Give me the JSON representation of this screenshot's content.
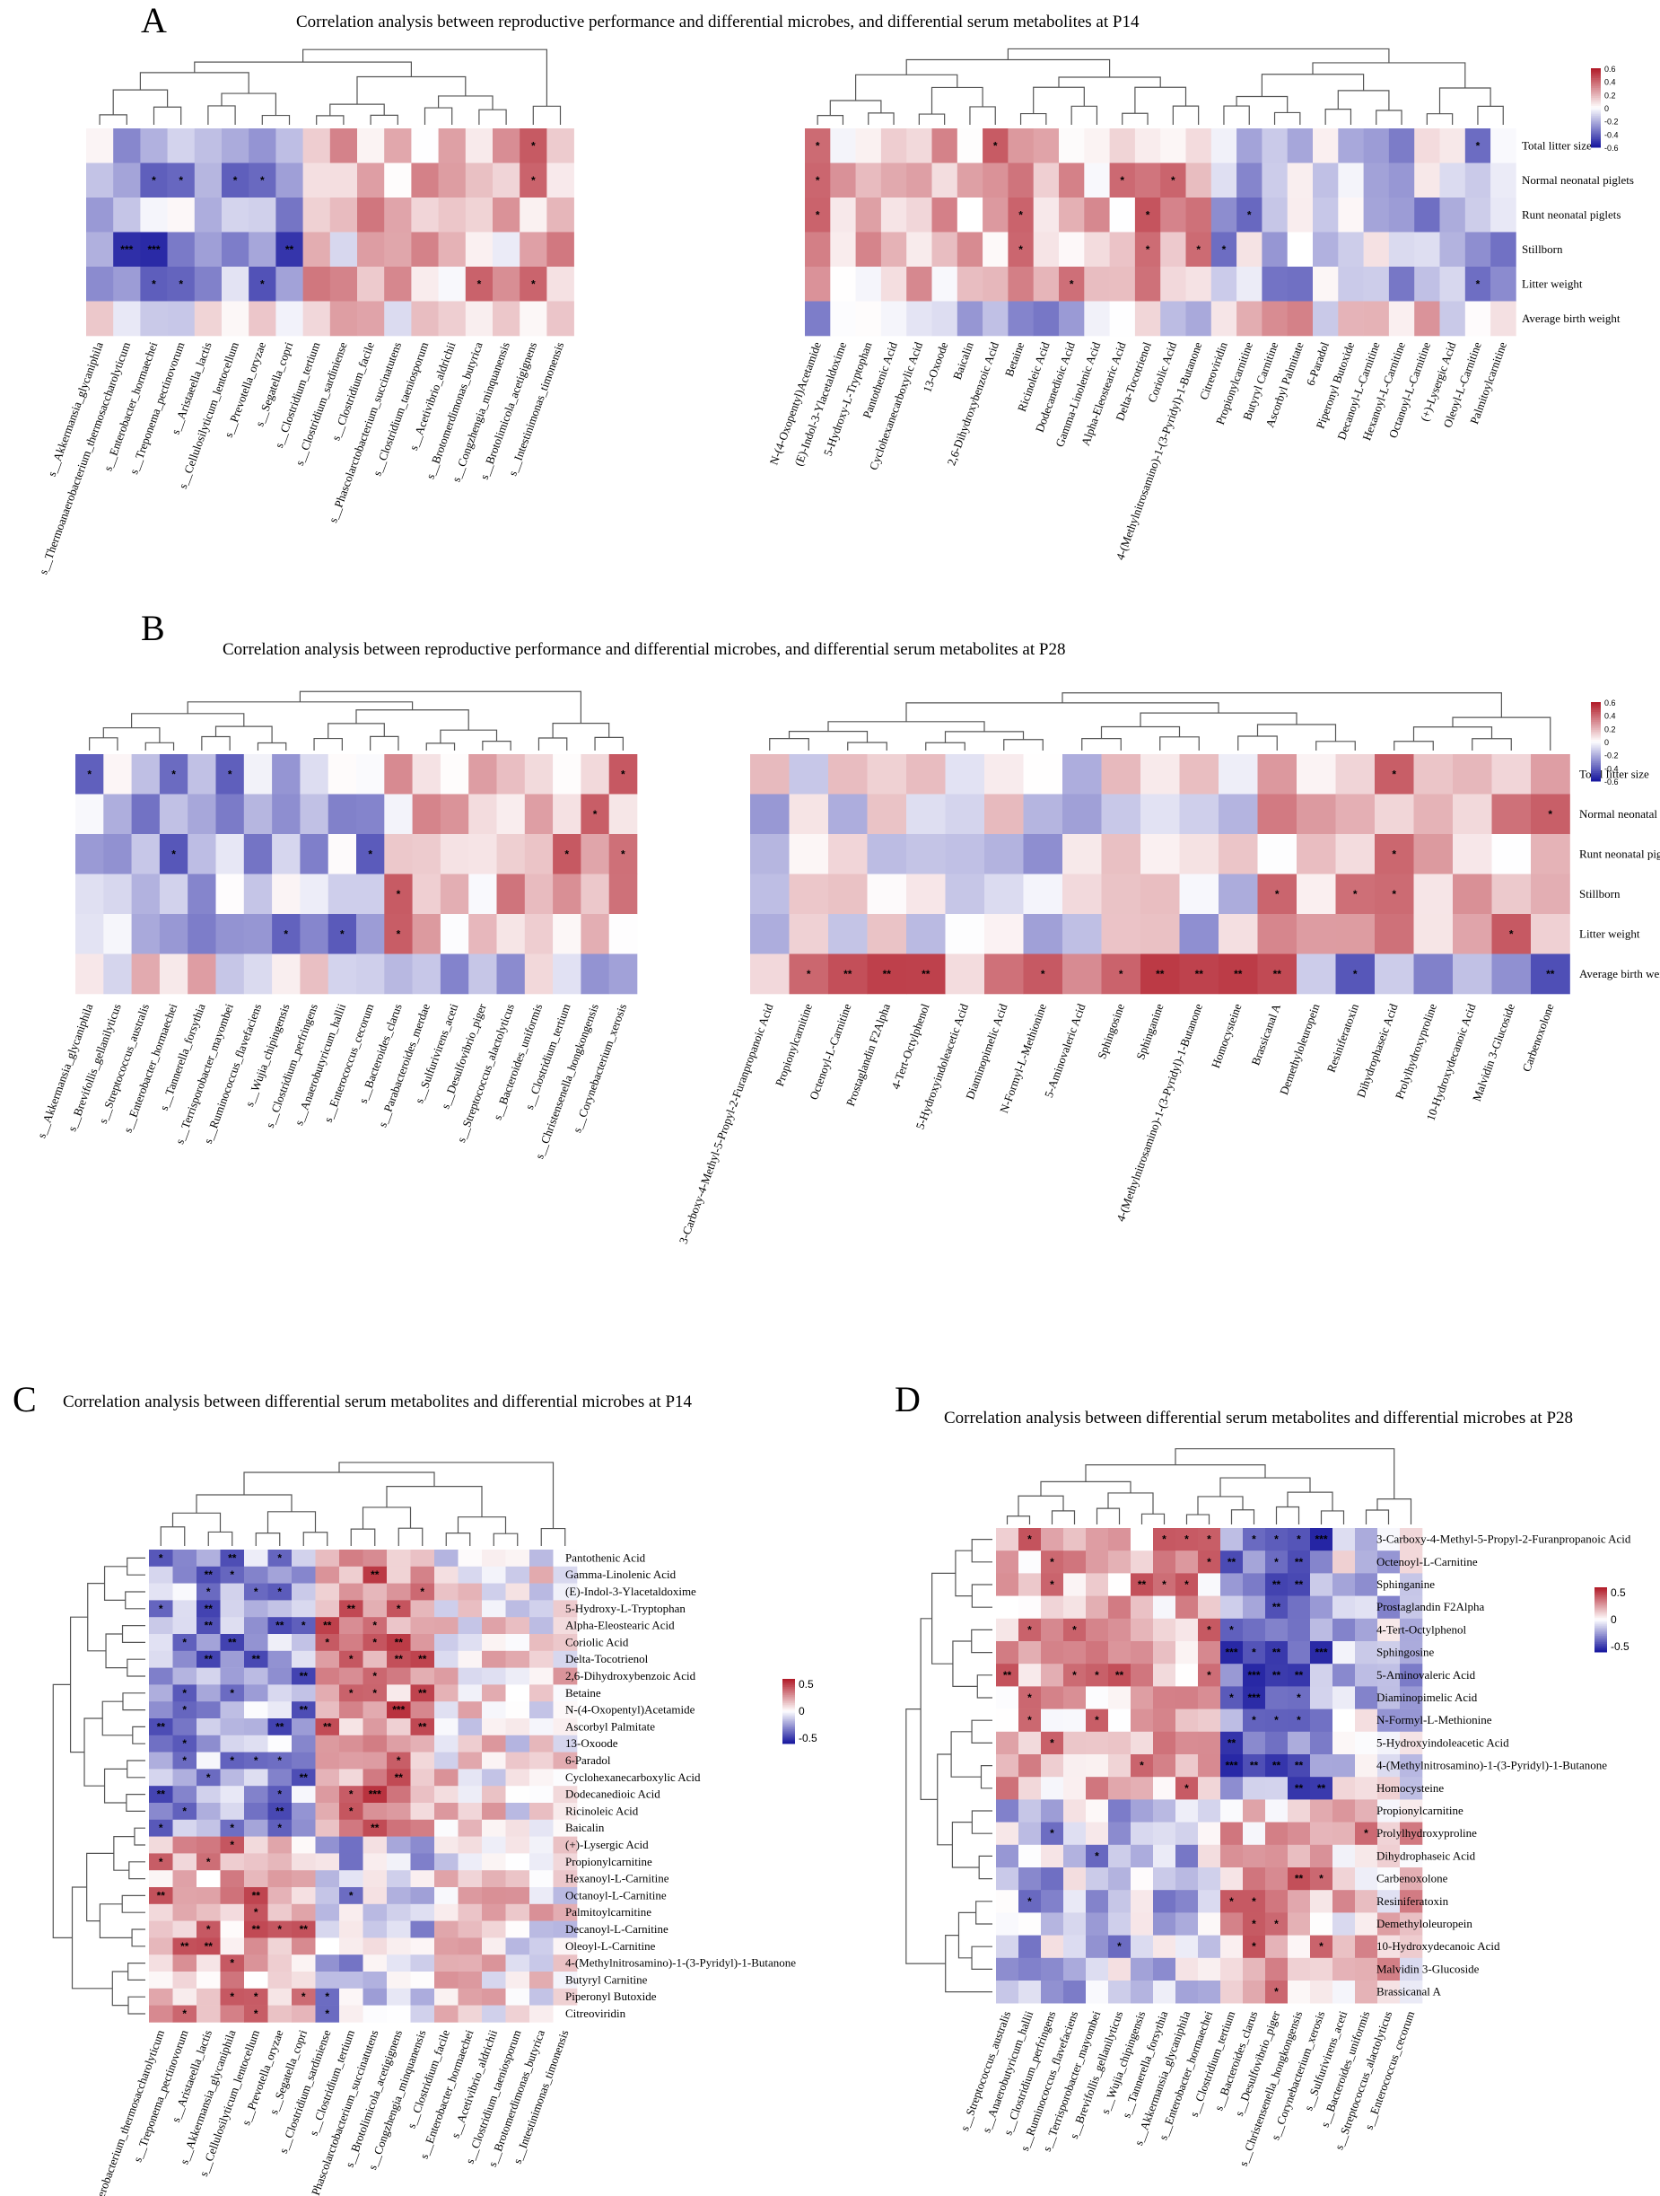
{
  "colors": {
    "neg": "#1b1ba0",
    "mid": "#ffffff",
    "pos": "#b21e2b",
    "tree": "#555555"
  },
  "chart_data": [
    {
      "type": "heatmap",
      "panel": "A",
      "title": "Correlation analysis between reproductive performance and differential microbes, and differential serum metabolites at P14",
      "rows": [
        "Total litter size",
        "Normal neonatal piglets",
        "Runt neonatal piglets",
        "Stillborn",
        "Litter weight",
        "Average birth weight"
      ],
      "cols_left": [
        "s__Akkermansia_glycaniphila",
        "s__Thermoanaerobacterium_thermosaccharolyticum",
        "s__Enterobacter_hormaechei",
        "s__Treponema_pectinovorum",
        "s__Aristaeella_lactis",
        "s__Cellulosilyticum_lentocellum",
        "s__Prevotella_oryzae",
        "s__Segatella_copri",
        "s__Clostridium_tertium",
        "s__Clostridium_sardiniense",
        "s__Clostridium_facile",
        "s__Phascolarctobacterium_succinatutens",
        "s__Clostridium_taeniosporum",
        "s__Acetivibrio_aldrichii",
        "s__Brotomerdimonas_butyrica",
        "s__Congzhengia_minquanensis",
        "s__Brotolimicola_acetigignens",
        "s__Intestinimonas_timonensis"
      ],
      "cols_right": [
        "N-(4-Oxopentyl)Acetamide",
        "(E)-Indol-3-Ylacetaldoxime",
        "5-Hydroxy-L-Tryptophan",
        "Pantothenic Acid",
        "Cyclohexanecarboxylic Acid",
        "13-Oxoode",
        "Baicalin",
        "2,6-Dihydroxybenzoic Acid",
        "Betaine",
        "Ricinoleic Acid",
        "Dodecanedioic Acid",
        "Gamma-Linolenic Acid",
        "Alpha-Eleostearic Acid",
        "Delta-Tocotrienol",
        "Coriolic Acid",
        "4-(Methylnitrosamino)-1-(3-Pyridyl)-1-Butanone",
        "Citreoviridin",
        "Propionylcarnitine",
        "Butyryl Carnitine",
        "Ascorbyl Palmitate",
        "6-Paradol",
        "Piperonyl Butoxide",
        "Decanoyl-L-Carnitine",
        "Hexanoyl-L-Carnitine",
        "Octanoyl-L-Carnitine",
        "(+)-Lysergic Acid",
        "Oleoyl-L-Carnitine",
        "Palmitoylcarnitine"
      ],
      "value_range": [
        -0.6,
        0.6
      ],
      "legend_ticks": [
        "0.6",
        "0.4",
        "0.2",
        "0",
        "-0.2",
        "-0.4",
        "-0.6"
      ]
    },
    {
      "type": "heatmap",
      "panel": "B",
      "title": "Correlation analysis between reproductive performance and differential microbes, and differential serum metabolites at P28",
      "rows": [
        "Total litter size",
        "Normal neonatal piglets",
        "Runt neonatal piglets",
        "Stillborn",
        "Litter weight",
        "Average birth weight"
      ],
      "cols_left": [
        "s__Akkermansia_glycaniphila",
        "s__Brevifollis_gellanilyticus",
        "s__Streptococcus_australis",
        "s__Enterobacter_hormaechei",
        "s__Tannerella_forsythia",
        "s__Terrisporobacter_mayombei",
        "s__Ruminococcus_flavefaciens",
        "s__Wujia_chipingensis",
        "s__Clostridium_perfringens",
        "s__Anaerobutyricum_hallii",
        "s__Enterococcus_cecorum",
        "s__Bacteroides_clarus",
        "s__Parabacteroides_merdae",
        "s__Sulfurivirens_aceti",
        "s__Desulfovibrio_piger",
        "s__Streptococcus_alactolyticus",
        "s__Bacteroides_uniformis",
        "s__Clostridium_tertium",
        "s__Christensenella_hongkongensis",
        "s__Corynebacterium_xerosis"
      ],
      "cols_right": [
        "3-Carboxy-4-Methyl-5-Propyl-2-Furanpropanoic Acid",
        "Propionylcarnitine",
        "Octenoyl-L-Carnitine",
        "Prostaglandin F2Alpha",
        "4-Tert-Octylphenol",
        "5-Hydroxyindoleacetic Acid",
        "Diaminopimelic Acid",
        "N-Formyl-L-Methionine",
        "5-Aminovaleric Acid",
        "Sphingosine",
        "Sphinganine",
        "4-(Methylnitrosamino)-1-(3-Pyridyl)-1-Butanone",
        "Homocysteine",
        "Brassicanal A",
        "Demethyloleuropein",
        "Resiniferatoxin",
        "Dihydrophaseic Acid",
        "Prolylhydroxyproline",
        "10-Hydroxydecanoic Acid",
        "Malvidin 3-Glucoside",
        "Carbenoxolone"
      ],
      "value_range": [
        -0.6,
        0.6
      ],
      "legend_ticks": [
        "0.6",
        "0.4",
        "0.2",
        "0",
        "-0.2",
        "-0.4",
        "-0.6"
      ]
    },
    {
      "type": "heatmap",
      "panel": "C",
      "title": "Correlation analysis between differential serum metabolites and differential microbes at P14",
      "rows": [
        "Pantothenic Acid",
        "Gamma-Linolenic Acid",
        "(E)-Indol-3-Ylacetaldoxime",
        "5-Hydroxy-L-Tryptophan",
        "Alpha-Eleostearic Acid",
        "Coriolic Acid",
        "Delta-Tocotrienol",
        "2,6-Dihydroxybenzoic Acid",
        "Betaine",
        "N-(4-Oxopentyl)Acetamide",
        "Ascorbyl Palmitate",
        "13-Oxoode",
        "6-Paradol",
        "Cyclohexanecarboxylic Acid",
        "Dodecanedioic Acid",
        "Ricinoleic Acid",
        "Baicalin",
        "(+)-Lysergic Acid",
        "Propionylcarnitine",
        "Hexanoyl-L-Carnitine",
        "Octanoyl-L-Carnitine",
        "Palmitoylcarnitine",
        "Decanoyl-L-Carnitine",
        "Oleoyl-L-Carnitine",
        "4-(Methylnitrosamino)-1-(3-Pyridyl)-1-Butanone",
        "Butyryl Carnitine",
        "Piperonyl Butoxide",
        "Citreoviridin"
      ],
      "cols": [
        "s__Thermoanaerobacterium_thermosaccharolyticum",
        "s__Treponema_pectinovorum",
        "s__Aristaeella_lactis",
        "s__Akkermansia_glycaniphila",
        "s__Cellulosilyticum_lentocellum",
        "s__Prevotella_oryzae",
        "s__Segatella_copri",
        "s__Clostridium_sardiniense",
        "s__Clostridium_tertium",
        "s__Phascolarctobacterium_succinatutens",
        "s__Brotolimicola_acetigignens",
        "s__Congzhengia_minquanensis",
        "s__Clostridium_facile",
        "s__Enterobacter_hormaechei",
        "s__Acetivibrio_aldrichii",
        "s__Clostridium_taeniosporum",
        "s__Brotomerdimonas_butyrica",
        "s__Intestinimonas_timonensis"
      ],
      "value_range": [
        -0.6,
        0.6
      ],
      "legend_ticks": [
        "0.5",
        "0",
        "-0.5"
      ]
    },
    {
      "type": "heatmap",
      "panel": "D",
      "title": "Correlation analysis between differential serum metabolites and differential microbes at P28",
      "rows": [
        "3-Carboxy-4-Methyl-5-Propyl-2-Furanpropanoic Acid",
        "Octenoyl-L-Carnitine",
        "Sphinganine",
        "Prostaglandin F2Alpha",
        "4-Tert-Octylphenol",
        "Sphingosine",
        "5-Aminovaleric Acid",
        "Diaminopimelic Acid",
        "N-Formyl-L-Methionine",
        "5-Hydroxyindoleacetic Acid",
        "4-(Methylnitrosamino)-1-(3-Pyridyl)-1-Butanone",
        "Homocysteine",
        "Propionylcarnitine",
        "Prolylhydroxyproline",
        "Dihydrophaseic Acid",
        "Carbenoxolone",
        "Resiniferatoxin",
        "Demethyloleuropein",
        "10-Hydroxydecanoic Acid",
        "Malvidin 3-Glucoside",
        "Brassicanal A"
      ],
      "cols": [
        "s__Streptococcus_australis",
        "s__Anaerobutyricum_hallii",
        "s__Clostridium_perfringens",
        "s__Ruminococcus_flavefaciens",
        "s__Terrisporobacter_mayombei",
        "s__Brevifollis_gellanilyticus",
        "s__Wujia_chipingensis",
        "s__Tannerella_forsythia",
        "s__Akkermansia_glycaniphila",
        "s__Enterobacter_hormaechei",
        "s__Clostridium_tertium",
        "s__Bacteroides_clarus",
        "s__Desulfovibrio_piger",
        "s__Christensenella_hongkongensis",
        "s__Corynebacterium_xerosis",
        "s__Sulfurivirens_aceti",
        "s__Bacteroides_uniformis",
        "s__Streptococcus_alactolyticus",
        "s__Enterococcus_cecorum"
      ],
      "value_range": [
        -0.6,
        0.6
      ],
      "legend_ticks": [
        "0.5",
        "0",
        "-0.5"
      ]
    }
  ]
}
